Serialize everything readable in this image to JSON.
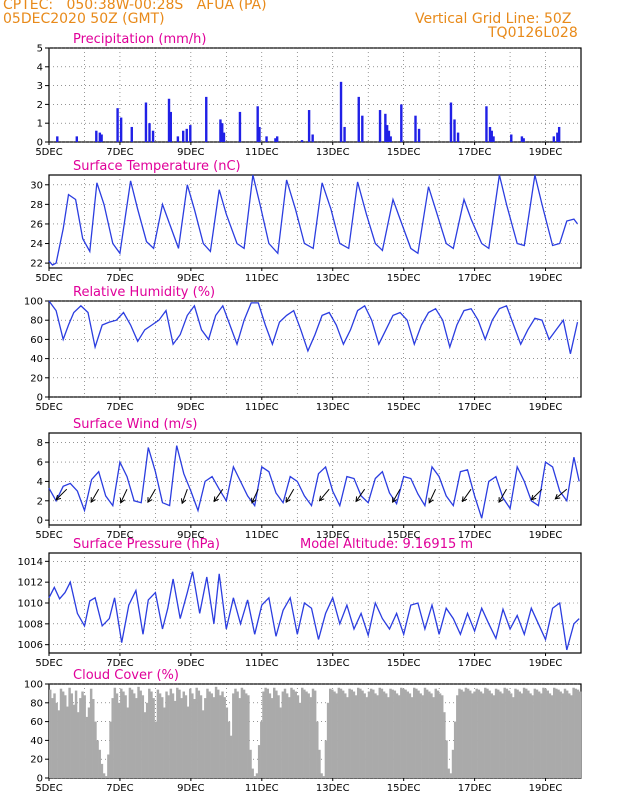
{
  "header": {
    "line1": "CPTEC:   050:38W-00:28S   AFUA (PA)",
    "line2": "05DEC2020 50Z (GMT)",
    "right1": "Vertical Grid Line: 50Z",
    "right2": "TQ0126L028"
  },
  "colors": {
    "header": "#e88a1a",
    "title": "#e0009a",
    "line": "#2b3de0",
    "bar": "#2020e6",
    "cloud": "#aaaaaa"
  },
  "x_labels": [
    "5DEC",
    "7DEC",
    "9DEC",
    "11DEC",
    "13DEC",
    "15DEC",
    "17DEC",
    "19DEC"
  ],
  "chart_data": [
    {
      "type": "bar",
      "title": "Precipitation (mm/h)",
      "ylim": [
        0,
        5
      ],
      "yticks": [
        0,
        1,
        2,
        3,
        4,
        5
      ],
      "x_unit": "day",
      "x": [
        0.2,
        0.75,
        1.3,
        1.4,
        1.45,
        1.9,
        2.0,
        2.3,
        2.7,
        2.8,
        2.9,
        3.35,
        3.4,
        3.6,
        3.75,
        3.85,
        3.95,
        4.4,
        4.8,
        4.85,
        4.9,
        5.35,
        5.85,
        5.9,
        6.1,
        6.35,
        6.4,
        7.1,
        7.3,
        7.4,
        8.2,
        8.3,
        8.7,
        8.8,
        9.3,
        9.45,
        9.5,
        9.55,
        9.6,
        9.9,
        10.3,
        10.4,
        11.3,
        11.4,
        11.5,
        12.3,
        12.4,
        12.45,
        12.5,
        13.0,
        13.3,
        13.35,
        14.2,
        14.3,
        14.35
      ],
      "values": [
        0.3,
        0.3,
        0.6,
        0.5,
        0.4,
        1.8,
        1.3,
        0.8,
        2.1,
        1.0,
        0.6,
        2.3,
        1.6,
        0.3,
        0.6,
        0.7,
        0.9,
        2.4,
        1.2,
        1.0,
        0.5,
        1.6,
        1.9,
        0.8,
        0.3,
        0.2,
        0.3,
        0.1,
        1.7,
        0.4,
        3.2,
        0.8,
        2.4,
        1.4,
        1.7,
        1.5,
        0.9,
        0.6,
        0.3,
        2.0,
        1.4,
        0.7,
        2.1,
        1.2,
        0.5,
        1.9,
        0.8,
        0.6,
        0.3,
        0.4,
        0.3,
        0.2,
        0.3,
        0.5,
        0.8
      ]
    },
    {
      "type": "line",
      "title": "Surface Temperature (nC)",
      "ylim": [
        21.5,
        31
      ],
      "yticks": [
        22,
        24,
        26,
        28,
        30
      ],
      "x_unit": "day",
      "x": [
        0,
        0.1,
        0.2,
        0.4,
        0.55,
        0.75,
        0.95,
        1.15,
        1.35,
        1.55,
        1.8,
        2.0,
        2.3,
        2.5,
        2.75,
        2.95,
        3.2,
        3.4,
        3.65,
        3.9,
        4.1,
        4.35,
        4.55,
        4.8,
        5.0,
        5.3,
        5.5,
        5.75,
        5.95,
        6.2,
        6.45,
        6.7,
        6.95,
        7.2,
        7.45,
        7.7,
        7.95,
        8.2,
        8.45,
        8.7,
        8.95,
        9.2,
        9.4,
        9.7,
        9.9,
        10.2,
        10.4,
        10.7,
        10.9,
        11.2,
        11.4,
        11.7,
        11.9,
        12.2,
        12.4,
        12.7,
        12.9,
        13.2,
        13.4,
        13.7,
        13.9,
        14.2,
        14.4,
        14.6,
        14.8,
        14.9
      ],
      "values": [
        22.2,
        21.8,
        22.0,
        25.5,
        29.0,
        28.5,
        24.5,
        23.2,
        30.2,
        28.0,
        24.0,
        23.0,
        30.4,
        27.5,
        24.2,
        23.5,
        28.0,
        26.0,
        23.5,
        30.0,
        27.5,
        24.0,
        23.2,
        29.5,
        27.0,
        24.0,
        23.5,
        31.0,
        28.0,
        24.0,
        23.0,
        30.5,
        27.5,
        24.0,
        23.5,
        30.2,
        27.5,
        24.0,
        23.5,
        30.3,
        27.0,
        24.0,
        23.3,
        28.5,
        26.5,
        23.5,
        23.0,
        29.8,
        27.5,
        24.0,
        23.5,
        28.5,
        26.5,
        24.0,
        23.5,
        31.0,
        28.0,
        24.0,
        23.8,
        31.0,
        28.0,
        23.8,
        24.0,
        26.3,
        26.5,
        26.0
      ]
    },
    {
      "type": "line",
      "title": "Relative Humidity (%)",
      "ylim": [
        0,
        100
      ],
      "yticks": [
        0,
        20,
        40,
        60,
        80,
        100
      ],
      "x_unit": "day",
      "x": [
        0,
        0.2,
        0.4,
        0.55,
        0.7,
        0.9,
        1.1,
        1.3,
        1.5,
        1.7,
        1.9,
        2.1,
        2.3,
        2.5,
        2.7,
        2.9,
        3.1,
        3.3,
        3.5,
        3.7,
        3.9,
        4.1,
        4.3,
        4.5,
        4.7,
        4.9,
        5.1,
        5.3,
        5.5,
        5.7,
        5.9,
        6.1,
        6.3,
        6.5,
        6.7,
        6.9,
        7.1,
        7.3,
        7.5,
        7.7,
        7.9,
        8.1,
        8.3,
        8.5,
        8.7,
        8.9,
        9.1,
        9.3,
        9.5,
        9.7,
        9.9,
        10.1,
        10.3,
        10.5,
        10.7,
        10.9,
        11.1,
        11.3,
        11.5,
        11.7,
        11.9,
        12.1,
        12.3,
        12.5,
        12.7,
        12.9,
        13.1,
        13.3,
        13.5,
        13.7,
        13.9,
        14.1,
        14.3,
        14.5,
        14.7,
        14.9
      ],
      "values": [
        100,
        90,
        60,
        75,
        88,
        95,
        88,
        52,
        75,
        78,
        80,
        88,
        75,
        58,
        70,
        75,
        80,
        90,
        55,
        65,
        85,
        95,
        70,
        60,
        85,
        95,
        75,
        55,
        80,
        98,
        98,
        75,
        55,
        78,
        85,
        90,
        70,
        48,
        65,
        85,
        88,
        75,
        55,
        70,
        90,
        95,
        80,
        55,
        70,
        85,
        88,
        80,
        55,
        75,
        88,
        92,
        80,
        52,
        75,
        90,
        92,
        80,
        60,
        80,
        92,
        95,
        75,
        55,
        70,
        82,
        80,
        60,
        70,
        80,
        45,
        78
      ]
    },
    {
      "type": "line",
      "title": "Surface Wind (m/s)",
      "ylim": [
        -0.5,
        9
      ],
      "yticks": [
        0,
        2,
        4,
        6,
        8
      ],
      "x_unit": "day",
      "x": [
        0,
        0.2,
        0.4,
        0.6,
        0.8,
        1.0,
        1.2,
        1.4,
        1.6,
        1.8,
        2.0,
        2.2,
        2.4,
        2.6,
        2.8,
        3.0,
        3.2,
        3.4,
        3.6,
        3.8,
        4.0,
        4.2,
        4.4,
        4.6,
        4.8,
        5.0,
        5.2,
        5.4,
        5.6,
        5.8,
        6.0,
        6.2,
        6.4,
        6.6,
        6.8,
        7.0,
        7.2,
        7.4,
        7.6,
        7.8,
        8.0,
        8.2,
        8.4,
        8.6,
        8.8,
        9.0,
        9.2,
        9.4,
        9.6,
        9.8,
        10.0,
        10.2,
        10.4,
        10.6,
        10.8,
        11.0,
        11.2,
        11.4,
        11.6,
        11.8,
        12.0,
        12.2,
        12.4,
        12.6,
        12.8,
        13.0,
        13.2,
        13.4,
        13.6,
        13.8,
        14.0,
        14.2,
        14.4,
        14.6,
        14.8,
        14.95
      ],
      "values": [
        3.3,
        2.0,
        3.5,
        3.8,
        3.0,
        1.0,
        4.2,
        5.0,
        2.5,
        1.5,
        6.0,
        4.5,
        2.0,
        1.8,
        7.5,
        5.0,
        1.8,
        1.5,
        7.7,
        4.8,
        3.0,
        1.0,
        4.0,
        4.5,
        3.2,
        2.0,
        5.5,
        4.0,
        2.5,
        1.5,
        5.5,
        5.0,
        2.8,
        1.8,
        4.5,
        4.0,
        2.5,
        1.5,
        4.8,
        5.5,
        3.0,
        1.5,
        4.5,
        4.3,
        2.5,
        1.8,
        4.3,
        5.0,
        2.8,
        1.7,
        4.5,
        4.3,
        2.7,
        1.5,
        5.5,
        4.5,
        2.5,
        1.5,
        5.0,
        5.2,
        2.5,
        0.2,
        4.0,
        4.5,
        2.3,
        1.2,
        5.5,
        4.0,
        2.0,
        1.5,
        6.0,
        5.5,
        3.0,
        2.0,
        6.5,
        4.0
      ],
      "arrows_note": "wind direction arrows overlaid near the 3 m/s level",
      "arrows": [
        {
          "x": 0.5,
          "dir_deg": 225
        },
        {
          "x": 1.4,
          "dir_deg": 210
        },
        {
          "x": 2.2,
          "dir_deg": 205
        },
        {
          "x": 3.0,
          "dir_deg": 210
        },
        {
          "x": 3.9,
          "dir_deg": 200
        },
        {
          "x": 4.9,
          "dir_deg": 215
        },
        {
          "x": 5.9,
          "dir_deg": 205
        },
        {
          "x": 6.9,
          "dir_deg": 210
        },
        {
          "x": 7.9,
          "dir_deg": 220
        },
        {
          "x": 8.9,
          "dir_deg": 215
        },
        {
          "x": 9.9,
          "dir_deg": 210
        },
        {
          "x": 10.9,
          "dir_deg": 205
        },
        {
          "x": 11.9,
          "dir_deg": 215
        },
        {
          "x": 12.9,
          "dir_deg": 210
        },
        {
          "x": 13.9,
          "dir_deg": 225
        },
        {
          "x": 14.6,
          "dir_deg": 230
        }
      ]
    },
    {
      "type": "line",
      "title": "Surface Pressure (hPa)",
      "annotation": "Model Altitude: 9.16915 m",
      "ylim": [
        1005.2,
        1014.8
      ],
      "yticks": [
        1006,
        1008,
        1010,
        1012,
        1014
      ],
      "x_unit": "day",
      "x": [
        0,
        0.15,
        0.3,
        0.45,
        0.6,
        0.8,
        1.0,
        1.15,
        1.3,
        1.5,
        1.7,
        1.85,
        2.05,
        2.25,
        2.45,
        2.65,
        2.8,
        3.0,
        3.2,
        3.35,
        3.5,
        3.7,
        3.9,
        4.05,
        4.25,
        4.45,
        4.65,
        4.8,
        5.0,
        5.2,
        5.4,
        5.6,
        5.8,
        6.0,
        6.2,
        6.4,
        6.6,
        6.8,
        7.0,
        7.2,
        7.4,
        7.6,
        7.8,
        8.0,
        8.2,
        8.4,
        8.6,
        8.8,
        9.0,
        9.2,
        9.4,
        9.6,
        9.8,
        10.0,
        10.2,
        10.4,
        10.6,
        10.8,
        11.0,
        11.2,
        11.4,
        11.6,
        11.8,
        12.0,
        12.2,
        12.4,
        12.6,
        12.8,
        13.0,
        13.2,
        13.4,
        13.6,
        13.8,
        14.0,
        14.2,
        14.4,
        14.6,
        14.8,
        14.95
      ],
      "values": [
        1010.5,
        1011.5,
        1010.4,
        1011.0,
        1012.0,
        1009.0,
        1007.8,
        1010.2,
        1010.5,
        1007.8,
        1008.5,
        1010.5,
        1006.2,
        1009.8,
        1011.2,
        1007.0,
        1010.3,
        1011.0,
        1007.5,
        1009.5,
        1012.3,
        1008.5,
        1011.0,
        1013.0,
        1009.0,
        1012.5,
        1008.0,
        1012.8,
        1007.5,
        1010.5,
        1008.0,
        1010.3,
        1007.0,
        1009.8,
        1010.5,
        1006.8,
        1009.3,
        1010.5,
        1007.0,
        1010.0,
        1009.5,
        1006.5,
        1009.0,
        1010.5,
        1008.0,
        1009.8,
        1007.5,
        1009.0,
        1006.9,
        1010.0,
        1008.5,
        1007.5,
        1009.0,
        1007.0,
        1009.8,
        1010.0,
        1007.5,
        1009.8,
        1007.0,
        1009.5,
        1008.5,
        1007.0,
        1009.0,
        1007.3,
        1009.5,
        1008.0,
        1006.6,
        1009.4,
        1007.5,
        1008.8,
        1007.0,
        1009.5,
        1008.0,
        1006.5,
        1009.5,
        1010.0,
        1005.5,
        1008.0,
        1008.5
      ]
    },
    {
      "type": "bar",
      "title": "Cloud Cover (%)",
      "ylim": [
        0,
        100
      ],
      "yticks": [
        0,
        20,
        40,
        60,
        80,
        100
      ],
      "x_unit": "day",
      "x_start": 0,
      "x_step": 0.06,
      "values": [
        94,
        85,
        90,
        80,
        72,
        95,
        92,
        88,
        76,
        96,
        90,
        78,
        93,
        70,
        85,
        92,
        88,
        65,
        75,
        95,
        84,
        60,
        40,
        30,
        15,
        5,
        2,
        25,
        60,
        85,
        96,
        90,
        80,
        95,
        92,
        88,
        75,
        96,
        94,
        90,
        85,
        97,
        93,
        88,
        70,
        80,
        95,
        92,
        85,
        60,
        94,
        90,
        86,
        75,
        92,
        88,
        95,
        90,
        82,
        96,
        94,
        85,
        92,
        88,
        76,
        95,
        90,
        84,
        96,
        93,
        88,
        72,
        85,
        95,
        92,
        90,
        86,
        97,
        94,
        88,
        92,
        86,
        75,
        60,
        45,
        90,
        95,
        92,
        85,
        96,
        94,
        90,
        88,
        30,
        10,
        2,
        5,
        35,
        60,
        92,
        96,
        95,
        90,
        85,
        96,
        93,
        88,
        75,
        92,
        95,
        90,
        86,
        96,
        94,
        92,
        88,
        80,
        96,
        94,
        92,
        90,
        86,
        95,
        93,
        60,
        30,
        5,
        2,
        40,
        80,
        95,
        94,
        92,
        90,
        96,
        95,
        93,
        90,
        86,
        95,
        94,
        92,
        88,
        96,
        95,
        93,
        90,
        86,
        92,
        95,
        94,
        90,
        88,
        96,
        95,
        92,
        90,
        86,
        95,
        94,
        93,
        90,
        88,
        96,
        95,
        94,
        92,
        90,
        86,
        96,
        95,
        93,
        90,
        88,
        96,
        94,
        92,
        90,
        86,
        95,
        93,
        90,
        88,
        70,
        40,
        10,
        5,
        30,
        60,
        88,
        95,
        94,
        92,
        96,
        95,
        93,
        90,
        92,
        95,
        94,
        92,
        90,
        96,
        95,
        93,
        90,
        88,
        95,
        94,
        92,
        90,
        96,
        95,
        93,
        90,
        86,
        95,
        94,
        92,
        90,
        96,
        95,
        93,
        90,
        88,
        95,
        94,
        92,
        90,
        96,
        95,
        93,
        90,
        88,
        96,
        95,
        94,
        92,
        90,
        95,
        93,
        90,
        88,
        96,
        95,
        94,
        92
      ]
    }
  ]
}
